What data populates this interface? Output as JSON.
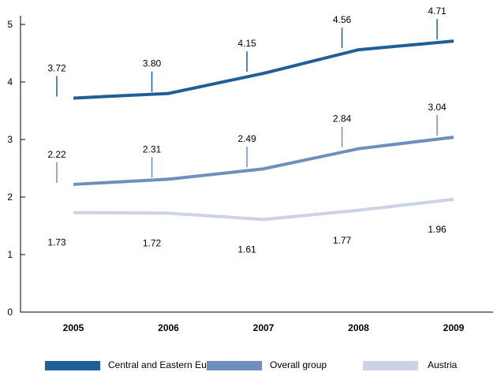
{
  "chart_data": {
    "type": "line",
    "categories": [
      "2005",
      "2006",
      "2007",
      "2008",
      "2009"
    ],
    "ylim": [
      0,
      5
    ],
    "yticks": [
      "0",
      "1",
      "2",
      "3",
      "4",
      "5"
    ],
    "grid": false,
    "legend_position": "bottom",
    "series": [
      {
        "name": "Central and Eastern Europe",
        "color": "#1f5f99",
        "values": [
          3.72,
          3.8,
          4.15,
          4.56,
          4.71
        ],
        "labels": [
          "3.72",
          "3.80",
          "4.15",
          "4.56",
          "4.71"
        ]
      },
      {
        "name": "Overall group",
        "color": "#6e8fbd",
        "values": [
          2.22,
          2.31,
          2.49,
          2.84,
          3.04
        ],
        "labels": [
          "2.22",
          "2.31",
          "2.49",
          "2.84",
          "3.04"
        ]
      },
      {
        "name": "Austria",
        "color": "#cbd3e4",
        "values": [
          1.73,
          1.72,
          1.61,
          1.77,
          1.96
        ],
        "labels": [
          "1.73",
          "1.72",
          "1.61",
          "1.77",
          "1.96"
        ]
      }
    ]
  }
}
